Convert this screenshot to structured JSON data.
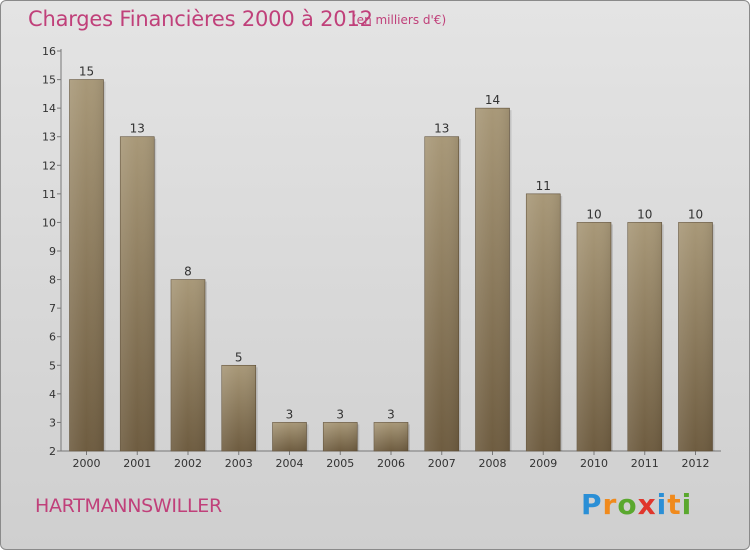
{
  "header": {
    "title": "Charges Financières 2000 à 2012",
    "subtitle": "(en milliers d'€)"
  },
  "footer": {
    "commune": "HARTMANNSWILLER",
    "logo": "Proxiti"
  },
  "colors": {
    "title": "#c0407a",
    "bar_top": "#a89878",
    "bar_bottom": "#6e5c40",
    "logo_letters": [
      "#2a8fd6",
      "#f08a1c",
      "#5aa82e",
      "#e0362c",
      "#2a8fd6",
      "#f08a1c",
      "#5aa82e"
    ]
  },
  "chart_data": {
    "type": "bar",
    "title": "Charges Financières 2000 à 2012",
    "subtitle": "(en milliers d'€)",
    "categories": [
      "2000",
      "2001",
      "2002",
      "2003",
      "2004",
      "2005",
      "2006",
      "2007",
      "2008",
      "2009",
      "2010",
      "2011",
      "2012"
    ],
    "values": [
      15,
      13,
      8,
      5,
      3,
      3,
      3,
      13,
      14,
      11,
      10,
      10,
      10
    ],
    "ylim": [
      2,
      16
    ],
    "yticks": [
      2,
      3,
      4,
      5,
      6,
      7,
      8,
      9,
      10,
      11,
      12,
      13,
      14,
      15,
      16
    ],
    "grid": false,
    "data_labels": true
  }
}
